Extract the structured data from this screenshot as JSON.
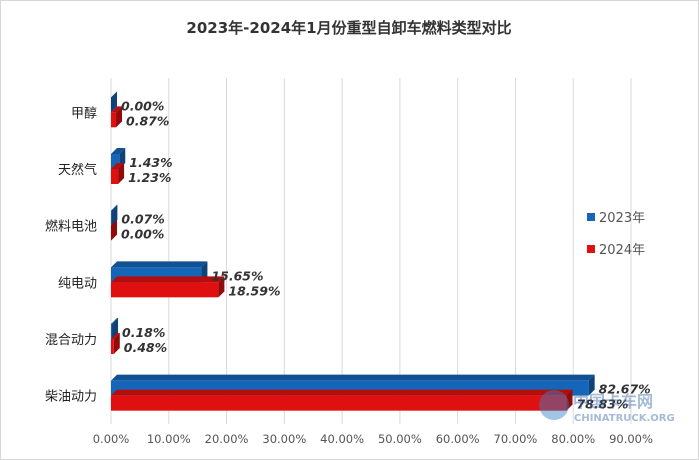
{
  "chart_data": {
    "type": "bar",
    "orientation": "horizontal",
    "title": "2023年-2024年1月份重型自卸车燃料类型对比",
    "categories": [
      "甲醇",
      "天然气",
      "燃料电池",
      "纯电动",
      "混合动力",
      "柴油动力"
    ],
    "series": [
      {
        "name": "2023年",
        "color": "#1565b8",
        "values": [
          0.0,
          1.43,
          0.07,
          15.65,
          0.18,
          82.67
        ],
        "labels": [
          "0.00%",
          "1.43%",
          "0.07%",
          "15.65%",
          "0.18%",
          "82.67%"
        ]
      },
      {
        "name": "2024年",
        "color": "#e01010",
        "values": [
          0.87,
          1.23,
          0.0,
          18.59,
          0.48,
          78.83
        ],
        "labels": [
          "0.87%",
          "1.23%",
          "0.00%",
          "18.59%",
          "0.48%",
          "78.83%"
        ]
      }
    ],
    "xlim": [
      0,
      90
    ],
    "x_ticks": [
      "0.00%",
      "10.00%",
      "20.00%",
      "30.00%",
      "40.00%",
      "50.00%",
      "60.00%",
      "70.00%",
      "80.00%",
      "90.00%"
    ],
    "grid": true,
    "legend_position": "right"
  },
  "watermark": {
    "logo_text": "中国卡车网",
    "site": "CHINATRUCK.ORG"
  }
}
